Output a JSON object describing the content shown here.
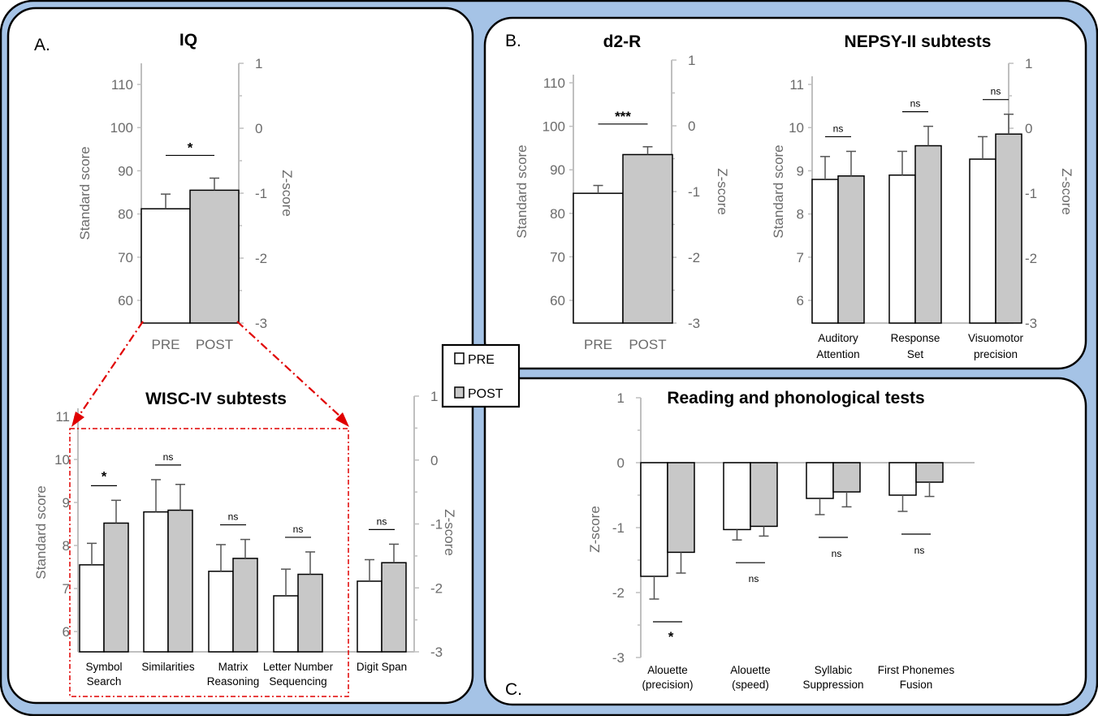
{
  "chart_data": [
    {
      "id": "iq",
      "type": "bar",
      "panel_letter": "A.",
      "title": "IQ",
      "ylabel": "Standard score",
      "y2label": "Z-score",
      "ylim": [
        57.5,
        117.5
      ],
      "yticks": [
        "60",
        "70",
        "80",
        "90",
        "100",
        "110"
      ],
      "y2ticks": [
        "1",
        "0",
        "-1",
        "-2",
        "-3"
      ],
      "categories": [
        "PRE",
        "POST"
      ],
      "series": [
        {
          "values": [
            81.2,
            85.5
          ],
          "errors": [
            3.4,
            2.8
          ]
        }
      ],
      "significance": [
        {
          "label": "*"
        }
      ]
    },
    {
      "id": "wisc",
      "type": "bar",
      "title": "WISC-IV subtests",
      "ylabel": "Standard score",
      "y2label": "Z-score",
      "ylim": [
        5.5,
        11
      ],
      "yticks": [
        "6",
        "7",
        "8",
        "9",
        "10",
        "11"
      ],
      "y2ticks": [
        "1",
        "0",
        "-1",
        "-2",
        "-3"
      ],
      "categories": [
        [
          "Symbol",
          "Search"
        ],
        [
          "Similarities"
        ],
        [
          "Matrix",
          "Reasoning"
        ],
        [
          "Letter Number",
          "Sequencing"
        ],
        [
          "Digit Span"
        ]
      ],
      "series": [
        {
          "name": "PRE",
          "values": [
            7.55,
            8.78,
            7.4,
            6.83,
            7.17
          ],
          "errors": [
            0.5,
            0.75,
            0.62,
            0.62,
            0.5
          ]
        },
        {
          "name": "POST",
          "values": [
            8.52,
            8.82,
            7.7,
            7.33,
            7.6
          ],
          "errors": [
            0.53,
            0.6,
            0.44,
            0.52,
            0.43
          ]
        }
      ],
      "significance": [
        "*",
        "ns",
        "ns",
        "ns",
        "ns"
      ]
    },
    {
      "id": "d2r",
      "type": "bar",
      "panel_letter": "B.",
      "title": "d2-R",
      "ylabel": "Standard score",
      "y2label": "Z-score",
      "ylim": [
        55,
        115
      ],
      "yticks": [
        "60",
        "70",
        "80",
        "90",
        "100",
        "110"
      ],
      "y2ticks": [
        "1",
        "0",
        "-1",
        "-2",
        "-3"
      ],
      "categories": [
        "PRE",
        "POST"
      ],
      "series": [
        {
          "values": [
            84.6,
            93.5
          ],
          "errors": [
            1.8,
            1.8
          ]
        }
      ],
      "significance": [
        {
          "label": "***"
        }
      ]
    },
    {
      "id": "nepsy",
      "type": "bar",
      "title": "NEPSY-II subtests",
      "ylabel": "Standard score",
      "y2label": "Z-score",
      "ylim": [
        5.5,
        11.2
      ],
      "yticks": [
        "6",
        "7",
        "8",
        "9",
        "10",
        "11"
      ],
      "y2ticks": [
        "1",
        "0",
        "-1",
        "-2",
        "-3"
      ],
      "categories": [
        [
          "Auditory",
          "Attention"
        ],
        [
          "Response",
          "Set"
        ],
        [
          "Visuomotor",
          "precision"
        ]
      ],
      "series": [
        {
          "name": "PRE",
          "values": [
            8.8,
            8.9,
            9.27
          ],
          "errors": [
            0.53,
            0.55,
            0.52
          ]
        },
        {
          "name": "POST",
          "values": [
            8.88,
            9.58,
            9.85
          ],
          "errors": [
            0.57,
            0.45,
            0.46
          ]
        }
      ],
      "significance": [
        "ns",
        "ns",
        "ns"
      ]
    },
    {
      "id": "reading",
      "type": "bar",
      "panel_letter": "C.",
      "title": "Reading and phonological tests",
      "ylabel": "Z-score",
      "ylim": [
        -3,
        1
      ],
      "yticks": [
        "1",
        "0",
        "-1",
        "-2",
        "-3"
      ],
      "categories": [
        [
          "Alouette",
          "(precision)"
        ],
        [
          "Alouette",
          "(speed)"
        ],
        [
          "Syllabic",
          "Suppression"
        ],
        [
          "First Phonemes",
          "Fusion"
        ]
      ],
      "series": [
        {
          "name": "PRE",
          "values": [
            -1.75,
            -1.03,
            -0.55,
            -0.5
          ],
          "errors": [
            0.35,
            0.16,
            0.25,
            0.25
          ]
        },
        {
          "name": "POST",
          "values": [
            -1.38,
            -0.98,
            -0.45,
            -0.3
          ],
          "errors": [
            0.32,
            0.15,
            0.23,
            0.22
          ]
        }
      ],
      "significance": [
        "*",
        "ns",
        "ns",
        "ns"
      ]
    }
  ],
  "legend": {
    "pre": "PRE",
    "post": "POST",
    "colors": {
      "pre": "#ffffff",
      "post": "#c8c8c8",
      "frame": "#a5c3e6"
    }
  }
}
